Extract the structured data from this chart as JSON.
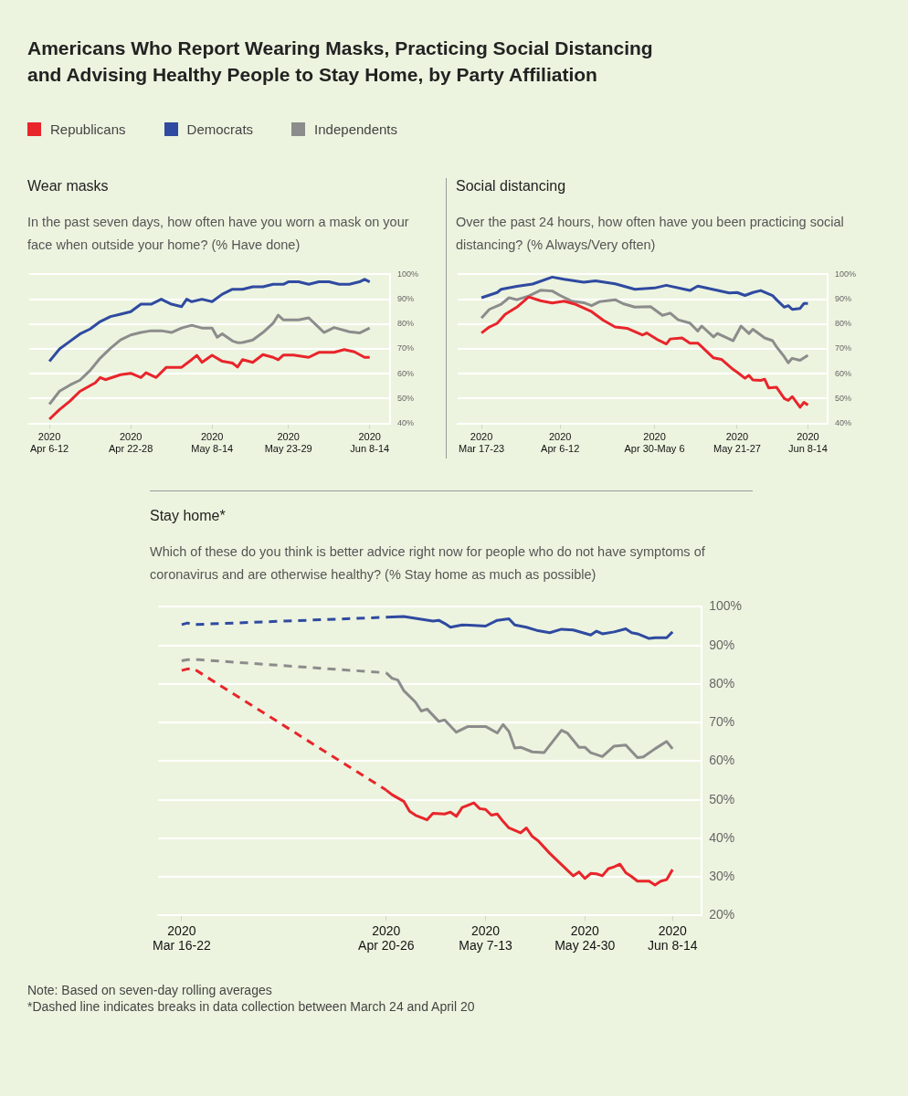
{
  "chart_data": [
    {
      "type": "other",
      "title": "Americans Who Report Wearing Masks, Practicing Social Distancing and Advising Healthy People to Stay Home, by Party Affiliation"
    },
    {
      "type": "line",
      "title": "Wear masks",
      "subtitle": "In the past seven days, how often have you worn a mask on your face when outside your home? (% Have done)",
      "legend": "top left",
      "grid": "y",
      "xlim": [
        "2020-04-08",
        "2020-06-18"
      ],
      "ylim": [
        40,
        100
      ],
      "xticks": [
        {
          "value": "2020-04-12",
          "label": "2020\nApr 6-12"
        },
        {
          "value": "2020-04-28",
          "label": "2020\nApr 22-28"
        },
        {
          "value": "2020-05-14",
          "label": "2020\nMay 8-14"
        },
        {
          "value": "2020-05-29",
          "label": "2020\nMay 23-29"
        },
        {
          "value": "2020-06-14",
          "label": "2020\nJun 8-14"
        }
      ],
      "yticks": [
        {
          "value": 40,
          "label": "40%"
        },
        {
          "value": 50,
          "label": "50%"
        },
        {
          "value": 60,
          "label": "60%"
        },
        {
          "value": 70,
          "label": "70%"
        },
        {
          "value": 80,
          "label": "80%"
        },
        {
          "value": 90,
          "label": "90%"
        },
        {
          "value": 100,
          "label": "100%"
        }
      ],
      "series": [
        {
          "name": "Republicans",
          "color": "#e8252b",
          "x": [
            "2020-04-12",
            "2020-04-14",
            "2020-04-16",
            "2020-04-18",
            "2020-04-20",
            "2020-04-21",
            "2020-04-22",
            "2020-04-23",
            "2020-04-26",
            "2020-04-28",
            "2020-04-30",
            "2020-05-01",
            "2020-05-03",
            "2020-05-05",
            "2020-05-08",
            "2020-05-10",
            "2020-05-11",
            "2020-05-12",
            "2020-05-14",
            "2020-05-16",
            "2020-05-18",
            "2020-05-19",
            "2020-05-20",
            "2020-05-22",
            "2020-05-24",
            "2020-05-26",
            "2020-05-27",
            "2020-05-28",
            "2020-05-30",
            "2020-06-02",
            "2020-06-04",
            "2020-06-07",
            "2020-06-09",
            "2020-06-11",
            "2020-06-13",
            "2020-06-14"
          ],
          "values": [
            41.7,
            45.6,
            48.9,
            52.9,
            55.2,
            56.3,
            58.5,
            57.6,
            59.6,
            60.2,
            58.5,
            60.4,
            58.5,
            62.6,
            62.6,
            65.7,
            67.4,
            64.6,
            67.4,
            65,
            64.3,
            62.7,
            65.7,
            64.6,
            67.7,
            66.6,
            65.6,
            67.5,
            67.5,
            66.6,
            68.6,
            68.6,
            69.7,
            68.8,
            66.6,
            66.6
          ]
        },
        {
          "name": "Democrats",
          "color": "#2f4aa0",
          "x": [
            "2020-04-12",
            "2020-04-14",
            "2020-04-16",
            "2020-04-18",
            "2020-04-20",
            "2020-04-22",
            "2020-04-24",
            "2020-04-26",
            "2020-04-28",
            "2020-04-30",
            "2020-05-02",
            "2020-05-04",
            "2020-05-06",
            "2020-05-08",
            "2020-05-09",
            "2020-05-10",
            "2020-05-12",
            "2020-05-14",
            "2020-05-16",
            "2020-05-18",
            "2020-05-20",
            "2020-05-22",
            "2020-05-24",
            "2020-05-26",
            "2020-05-28",
            "2020-05-29",
            "2020-05-31",
            "2020-06-02",
            "2020-06-04",
            "2020-06-06",
            "2020-06-08",
            "2020-06-10",
            "2020-06-12",
            "2020-06-13",
            "2020-06-14"
          ],
          "values": [
            65,
            70,
            73,
            76,
            78,
            81,
            83,
            84,
            85,
            88,
            88,
            90,
            88,
            87,
            90,
            89,
            90,
            89,
            92,
            94,
            94,
            95,
            95,
            96,
            96,
            97,
            97,
            96,
            97,
            97,
            96,
            96,
            97,
            98,
            97
          ]
        },
        {
          "name": "Independents",
          "color": "#8c8c8c",
          "x": [
            "2020-04-12",
            "2020-04-14",
            "2020-04-16",
            "2020-04-18",
            "2020-04-20",
            "2020-04-22",
            "2020-04-24",
            "2020-04-26",
            "2020-04-28",
            "2020-04-30",
            "2020-05-02",
            "2020-05-04",
            "2020-05-06",
            "2020-05-08",
            "2020-05-10",
            "2020-05-12",
            "2020-05-14",
            "2020-05-15",
            "2020-05-16",
            "2020-05-18",
            "2020-05-19",
            "2020-05-20",
            "2020-05-22",
            "2020-05-24",
            "2020-05-26",
            "2020-05-27",
            "2020-05-28",
            "2020-05-31",
            "2020-06-02",
            "2020-06-04",
            "2020-06-05",
            "2020-06-07",
            "2020-06-10",
            "2020-06-12",
            "2020-06-14"
          ],
          "values": [
            47.7,
            53,
            55.4,
            57.4,
            61.3,
            66.3,
            70.2,
            73.6,
            75.6,
            76.6,
            77.3,
            77.3,
            76.6,
            78.4,
            79.5,
            78.4,
            78.4,
            74.7,
            76.1,
            73.2,
            72.5,
            72.6,
            73.6,
            76.6,
            80.3,
            83.6,
            81.7,
            81.7,
            82.5,
            78.6,
            76.6,
            78.6,
            76.9,
            76.4,
            78.4
          ]
        }
      ]
    },
    {
      "type": "line",
      "title": "Social distancing",
      "subtitle": "Over the past 24 hours, how often have you been practicing social distancing? (% Always/Very often)",
      "grid": "y",
      "xlim": [
        "2020-03-17",
        "2020-06-19"
      ],
      "ylim": [
        40,
        100
      ],
      "xticks": [
        {
          "value": "2020-03-23",
          "label": "2020\nMar 17-23"
        },
        {
          "value": "2020-04-12",
          "label": "2020\nApr 6-12"
        },
        {
          "value": "2020-05-06",
          "label": "2020\nApr 30-May 6"
        },
        {
          "value": "2020-05-27",
          "label": "2020\nMay 21-27"
        },
        {
          "value": "2020-06-14",
          "label": "2020\nJun 8-14"
        }
      ],
      "yticks": [
        {
          "value": 40,
          "label": "40%"
        },
        {
          "value": 50,
          "label": "50%"
        },
        {
          "value": 60,
          "label": "60%"
        },
        {
          "value": 70,
          "label": "70%"
        },
        {
          "value": 80,
          "label": "80%"
        },
        {
          "value": 90,
          "label": "90%"
        },
        {
          "value": 100,
          "label": "100%"
        }
      ],
      "series": [
        {
          "color": "#e8252b",
          "x": [
            "2020-03-23",
            "2020-03-25",
            "2020-03-27",
            "2020-03-29",
            "2020-04-01",
            "2020-04-04",
            "2020-04-07",
            "2020-04-10",
            "2020-04-13",
            "2020-04-16",
            "2020-04-20",
            "2020-04-23",
            "2020-04-26",
            "2020-04-29",
            "2020-05-03",
            "2020-05-04",
            "2020-05-07",
            "2020-05-09",
            "2020-05-10",
            "2020-05-13",
            "2020-05-15",
            "2020-05-17",
            "2020-05-18",
            "2020-05-21",
            "2020-05-23",
            "2020-05-26",
            "2020-05-27",
            "2020-05-29",
            "2020-05-30",
            "2020-05-31",
            "2020-06-02",
            "2020-06-03",
            "2020-06-04",
            "2020-06-06",
            "2020-06-08",
            "2020-06-09",
            "2020-06-10",
            "2020-06-12",
            "2020-06-13",
            "2020-06-14"
          ],
          "values": [
            76.4,
            78.8,
            80.3,
            83.9,
            86.8,
            90.9,
            89.4,
            88.5,
            89.2,
            87.9,
            85,
            81.5,
            78.8,
            78.3,
            75.6,
            76.4,
            73.5,
            72,
            74,
            74.4,
            72.3,
            72.3,
            70.9,
            66.4,
            65.8,
            61.7,
            60.6,
            58.2,
            59.3,
            57.5,
            57.3,
            57.8,
            54.3,
            54.6,
            50,
            49.3,
            50.8,
            46.5,
            48.5,
            47.4
          ]
        },
        {
          "color": "#2f4aa0",
          "x": [
            "2020-03-23",
            "2020-03-27",
            "2020-03-28",
            "2020-04-01",
            "2020-04-05",
            "2020-04-10",
            "2020-04-13",
            "2020-04-18",
            "2020-04-21",
            "2020-04-26",
            "2020-05-01",
            "2020-05-06",
            "2020-05-09",
            "2020-05-15",
            "2020-05-17",
            "2020-05-21",
            "2020-05-25",
            "2020-05-27",
            "2020-05-29",
            "2020-05-31",
            "2020-06-02",
            "2020-06-05",
            "2020-06-06",
            "2020-06-08",
            "2020-06-09",
            "2020-06-10",
            "2020-06-12",
            "2020-06-13",
            "2020-06-14"
          ],
          "values": [
            90.6,
            92.7,
            94,
            95.2,
            96.1,
            98.9,
            98,
            96.8,
            97.4,
            96.2,
            94,
            94.5,
            95.6,
            93.5,
            95.3,
            93.9,
            92.5,
            92.7,
            91.5,
            92.7,
            93.5,
            91.5,
            89.8,
            86.8,
            87.4,
            85.9,
            86.3,
            88.3,
            88.3
          ]
        },
        {
          "color": "#8c8c8c",
          "x": [
            "2020-03-23",
            "2020-03-25",
            "2020-03-28",
            "2020-03-30",
            "2020-04-01",
            "2020-04-04",
            "2020-04-07",
            "2020-04-10",
            "2020-04-12",
            "2020-04-15",
            "2020-04-18",
            "2020-04-20",
            "2020-04-22",
            "2020-04-26",
            "2020-04-28",
            "2020-05-01",
            "2020-05-05",
            "2020-05-08",
            "2020-05-10",
            "2020-05-12",
            "2020-05-15",
            "2020-05-17",
            "2020-05-18",
            "2020-05-21",
            "2020-05-22",
            "2020-05-26",
            "2020-05-28",
            "2020-05-30",
            "2020-05-31",
            "2020-06-03",
            "2020-06-05",
            "2020-06-06",
            "2020-06-08",
            "2020-06-09",
            "2020-06-10",
            "2020-06-12",
            "2020-06-14"
          ],
          "values": [
            82.4,
            85.9,
            88,
            90.6,
            89.8,
            91.3,
            93.6,
            93.3,
            91.5,
            89.2,
            88.6,
            87.4,
            89,
            89.8,
            88.2,
            86.8,
            87,
            83.5,
            84.4,
            81.7,
            80.4,
            77.2,
            79.2,
            74.8,
            76.2,
            73.3,
            79.2,
            76.2,
            77.9,
            74.4,
            73.3,
            70.9,
            66.8,
            64.4,
            66.2,
            65.4,
            67.4
          ]
        }
      ]
    },
    {
      "type": "line",
      "title": "Stay home*",
      "subtitle": "Which of these do you think is better advice right now for people who do not have symptoms of coronavirus and are otherwise healthy? (% Stay home as much as possible)",
      "grid": "y",
      "xlim": [
        "2020-03-18",
        "2020-06-19"
      ],
      "ylim": [
        20,
        100
      ],
      "xticks": [
        {
          "value": "2020-03-22",
          "label": "2020\nMar 16-22"
        },
        {
          "value": "2020-04-26",
          "label": "2020\nApr 20-26"
        },
        {
          "value": "2020-05-13",
          "label": "2020\nMay 7-13"
        },
        {
          "value": "2020-05-30",
          "label": "2020\nMay 24-30"
        },
        {
          "value": "2020-06-14",
          "label": "2020\nJun 8-14"
        }
      ],
      "yticks": [
        {
          "value": 20,
          "label": "20%"
        },
        {
          "value": 30,
          "label": "30%"
        },
        {
          "value": 40,
          "label": "40%"
        },
        {
          "value": 50,
          "label": "50%"
        },
        {
          "value": 60,
          "label": "60%"
        },
        {
          "value": 70,
          "label": "70%"
        },
        {
          "value": 80,
          "label": "80%"
        },
        {
          "value": 90,
          "label": "90%"
        },
        {
          "value": 100,
          "label": "100%"
        }
      ],
      "annotations": [
        "Note: Based on seven-day rolling averages",
        "*Dashed line indicates breaks in data collection between March 24 and April 20"
      ],
      "series": [
        {
          "color": "#e8252b",
          "x": [
            "2020-04-26",
            "2020-04-27",
            "2020-04-29",
            "2020-04-30",
            "2020-05-01",
            "2020-05-03",
            "2020-05-04",
            "2020-05-06",
            "2020-05-07",
            "2020-05-08",
            "2020-05-09",
            "2020-05-11",
            "2020-05-12",
            "2020-05-13",
            "2020-05-14",
            "2020-05-15",
            "2020-05-16",
            "2020-05-17",
            "2020-05-19",
            "2020-05-20",
            "2020-05-21",
            "2020-05-22",
            "2020-05-24",
            "2020-05-26",
            "2020-05-28",
            "2020-05-29",
            "2020-05-30",
            "2020-05-31",
            "2020-06-01",
            "2020-06-02",
            "2020-06-03",
            "2020-06-04",
            "2020-06-05",
            "2020-06-06",
            "2020-06-07",
            "2020-06-08",
            "2020-06-10",
            "2020-06-11",
            "2020-06-12",
            "2020-06-13",
            "2020-06-14"
          ],
          "values": [
            52.5,
            51.3,
            49.6,
            47,
            46,
            44.8,
            46.5,
            46.3,
            46.8,
            45.7,
            48,
            49.2,
            47.7,
            47.5,
            46,
            46.3,
            44.4,
            42.7,
            41.4,
            42.7,
            40.5,
            39.4,
            36.1,
            33.2,
            30.3,
            31.3,
            29.6,
            30.9,
            30.8,
            30.3,
            32.1,
            32.6,
            33.3,
            31.1,
            30.1,
            28.9,
            28.9,
            27.9,
            28.9,
            29.3,
            31.9
          ]
        },
        {
          "color": "#e8252b",
          "line_style": "dashed",
          "x": [
            "2020-03-22",
            "2020-03-23",
            "2020-03-24",
            "2020-04-26"
          ],
          "values": [
            83.5,
            83.9,
            84,
            52.5
          ]
        },
        {
          "color": "#2f4aa0",
          "x": [
            "2020-04-26",
            "2020-04-29",
            "2020-05-01",
            "2020-05-04",
            "2020-05-05",
            "2020-05-06",
            "2020-05-07",
            "2020-05-09",
            "2020-05-11",
            "2020-05-13",
            "2020-05-15",
            "2020-05-17",
            "2020-05-18",
            "2020-05-20",
            "2020-05-22",
            "2020-05-24",
            "2020-05-26",
            "2020-05-28",
            "2020-05-31",
            "2020-06-01",
            "2020-06-02",
            "2020-06-04",
            "2020-06-06",
            "2020-06-07",
            "2020-06-08",
            "2020-06-10",
            "2020-06-11",
            "2020-06-13",
            "2020-06-14"
          ],
          "values": [
            97.3,
            97.5,
            97,
            96.3,
            96.5,
            95.7,
            94.7,
            95.3,
            95.2,
            95,
            96.5,
            96.9,
            95.3,
            94.7,
            93.8,
            93.3,
            94.2,
            94,
            92.7,
            93.7,
            93,
            93.5,
            94.3,
            93.3,
            93,
            91.8,
            92,
            92,
            93.5
          ]
        },
        {
          "color": "#2f4aa0",
          "line_style": "dashed",
          "x": [
            "2020-03-22",
            "2020-03-23",
            "2020-03-24",
            "2020-04-26"
          ],
          "values": [
            95.4,
            95.8,
            95.4,
            97.3
          ]
        },
        {
          "color": "#8c8c8c",
          "x": [
            "2020-04-26",
            "2020-04-27",
            "2020-04-28",
            "2020-04-29",
            "2020-05-01",
            "2020-05-02",
            "2020-05-03",
            "2020-05-05",
            "2020-05-06",
            "2020-05-08",
            "2020-05-10",
            "2020-05-13",
            "2020-05-15",
            "2020-05-16",
            "2020-05-17",
            "2020-05-18",
            "2020-05-19",
            "2020-05-21",
            "2020-05-23",
            "2020-05-26",
            "2020-05-27",
            "2020-05-29",
            "2020-05-30",
            "2020-05-31",
            "2020-06-02",
            "2020-06-04",
            "2020-06-06",
            "2020-06-08",
            "2020-06-09",
            "2020-06-11",
            "2020-06-13",
            "2020-06-14"
          ],
          "values": [
            82.9,
            81.5,
            81,
            78.3,
            75.3,
            73,
            73.5,
            70.3,
            70.7,
            67.5,
            69,
            69,
            67.3,
            69.5,
            67.7,
            63.4,
            63.6,
            62.4,
            62.2,
            68,
            67.3,
            63.6,
            63.6,
            62.2,
            61.2,
            63.9,
            64.2,
            60.9,
            61.1,
            63.2,
            65.1,
            63.2
          ]
        },
        {
          "color": "#8c8c8c",
          "line_style": "dashed",
          "x": [
            "2020-03-22",
            "2020-03-23",
            "2020-03-25",
            "2020-04-26"
          ],
          "values": [
            86,
            86.3,
            86.3,
            82.9
          ]
        }
      ]
    }
  ]
}
